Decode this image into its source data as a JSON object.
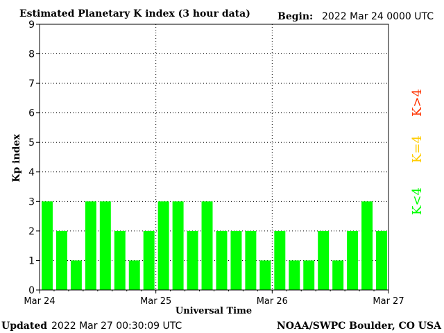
{
  "header": {
    "title": "Estimated Planetary K index (3 hour data)",
    "begin_label": "Begin:",
    "begin_value": "2022 Mar 24 0000 UTC"
  },
  "footer": {
    "updated_label": "Updated",
    "updated_value": "2022 Mar 27 00:30:09 UTC",
    "source": "NOAA/SWPC Boulder, CO USA"
  },
  "legend": {
    "low": "K<4",
    "mid": "K=4",
    "high": "K>4"
  },
  "colors": {
    "low": "#00ff00",
    "mid": "#ffcc00",
    "high": "#ff3300",
    "axis": "#000000"
  },
  "chart_data": {
    "type": "bar",
    "title": "Estimated Planetary K index (3 hour data)",
    "xlabel": "Universal Time",
    "ylabel": "Kp index",
    "ylim": [
      0,
      9
    ],
    "yticks": [
      "0",
      "1",
      "2",
      "3",
      "4",
      "5",
      "6",
      "7",
      "8",
      "9"
    ],
    "xticks": [
      "Mar 24",
      "Mar 25",
      "Mar 26",
      "Mar 27"
    ],
    "grid": true,
    "values": [
      3,
      2,
      1,
      3,
      3,
      2,
      1,
      2,
      3,
      3,
      2,
      3,
      2,
      2,
      2,
      1,
      2,
      1,
      1,
      2,
      1,
      2,
      3,
      2
    ]
  }
}
